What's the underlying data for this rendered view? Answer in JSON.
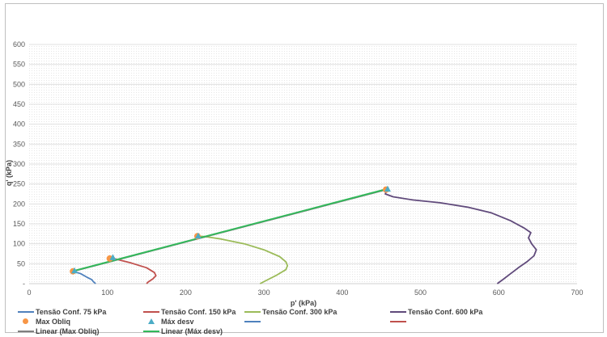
{
  "chart_data": {
    "type": "line",
    "title": "",
    "xlabel": "p' (kPa)",
    "ylabel": "q' (kPa)",
    "xlim": [
      0,
      700
    ],
    "ylim": [
      0,
      600
    ],
    "x_ticks": [
      "0",
      "100",
      "200",
      "300",
      "400",
      "500",
      "600",
      "700"
    ],
    "y_ticks": [
      "-",
      "50",
      "100",
      "150",
      "200",
      "250",
      "300",
      "350",
      "400",
      "450",
      "500",
      "550",
      "600"
    ],
    "grid": true,
    "legend_position": "bottom",
    "series": [
      {
        "name": "Tensão Conf. 75 kPa",
        "color": "#4f81bd",
        "marker": "none",
        "x": [
          85,
          82,
          80,
          75,
          66,
          58,
          57
        ],
        "y": [
          0,
          5,
          10,
          15,
          25,
          30,
          32
        ]
      },
      {
        "name": "Tensão Conf. 150 kPa",
        "color": "#c0504d",
        "marker": "none",
        "x": [
          150,
          152,
          158,
          162,
          160,
          150,
          130,
          118,
          110,
          104,
          103
        ],
        "y": [
          0,
          4,
          12,
          20,
          28,
          40,
          52,
          58,
          62,
          63,
          63
        ]
      },
      {
        "name": "Tensão Conf. 300 kPa",
        "color": "#9bbb59",
        "marker": "none",
        "x": [
          295,
          300,
          315,
          328,
          330,
          328,
          320,
          300,
          275,
          245,
          225,
          216
        ],
        "y": [
          0,
          5,
          20,
          35,
          45,
          55,
          68,
          85,
          100,
          112,
          118,
          119
        ]
      },
      {
        "name": "Tensão Conf. 600 kPa",
        "color": "#604a7b",
        "marker": "none",
        "x": [
          598,
          605,
          615,
          625,
          636,
          645,
          648,
          642,
          638,
          641,
          632,
          615,
          590,
          560,
          525,
          490,
          465,
          455,
          457
        ],
        "y": [
          0,
          10,
          25,
          40,
          55,
          70,
          85,
          100,
          115,
          128,
          140,
          158,
          178,
          192,
          203,
          210,
          218,
          225,
          235
        ]
      },
      {
        "name": "Max Obliq",
        "color": "#f79646",
        "marker": "circle",
        "line": false,
        "x": [
          56,
          103,
          215,
          456
        ],
        "y": [
          31,
          63,
          119,
          236
        ]
      },
      {
        "name": "Máx desv",
        "color": "#4bacc6",
        "marker": "triangle",
        "line": false,
        "x": [
          58,
          107,
          216,
          458
        ],
        "y": [
          32,
          65,
          119,
          237
        ]
      },
      {
        "name": "Linear (Max Obliq)",
        "color": "#7f7f7f",
        "marker": "none",
        "x": [
          56,
          456
        ],
        "y": [
          31,
          236
        ]
      },
      {
        "name": "Linear (Máx desv)",
        "color": "#32b85a",
        "marker": "none",
        "x": [
          57,
          456
        ],
        "y": [
          32,
          237
        ]
      }
    ]
  },
  "legend": {
    "items": [
      {
        "label": "Tensão Conf. 75 kPa",
        "color": "#4f81bd",
        "symbol": "line"
      },
      {
        "label": "Tensão Conf. 150 kPa",
        "color": "#c0504d",
        "symbol": "line"
      },
      {
        "label": "Tensão Conf. 300 kPa",
        "color": "#9bbb59",
        "symbol": "line"
      },
      {
        "label": "Tensão Conf. 600 kPa",
        "color": "#604a7b",
        "symbol": "line"
      },
      {
        "label": "Max Obliq",
        "color": "#f79646",
        "symbol": "circle"
      },
      {
        "label": "Máx desv",
        "color": "#4bacc6",
        "symbol": "triangle"
      },
      {
        "label": "",
        "color": "#4f81bd",
        "symbol": "line"
      },
      {
        "label": "",
        "color": "#c0504d",
        "symbol": "line"
      },
      {
        "label": "Linear (Max Obliq)",
        "color": "#7f7f7f",
        "symbol": "line"
      },
      {
        "label": "Linear (Máx desv)",
        "color": "#32b85a",
        "symbol": "line"
      }
    ]
  }
}
